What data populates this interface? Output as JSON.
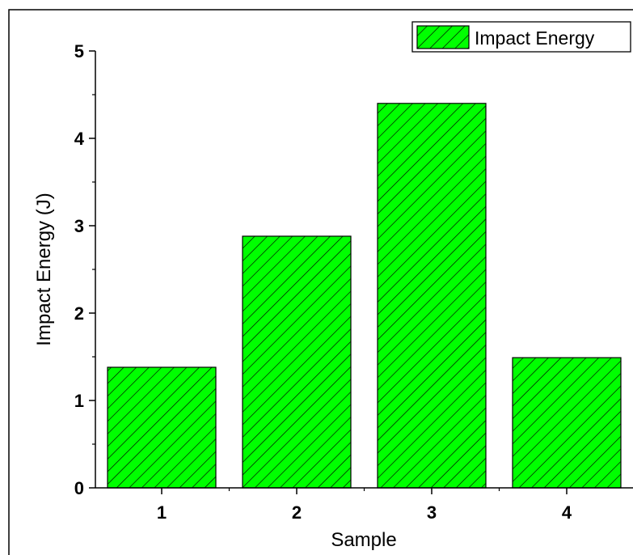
{
  "chart_data": {
    "type": "bar",
    "categories": [
      "1",
      "2",
      "3",
      "4"
    ],
    "series": [
      {
        "name": "Impact Energy",
        "values": [
          1.38,
          2.88,
          4.4,
          1.49
        ]
      }
    ],
    "xlabel": "Sample",
    "ylabel": "Impact Energy (J)",
    "ylim": [
      0,
      5
    ],
    "yticks": [
      "0",
      "1",
      "2",
      "3",
      "4",
      "5"
    ],
    "grid": false,
    "legend_position": "top-right",
    "bar_color": "#00ff00",
    "hatch": "diagonal"
  }
}
